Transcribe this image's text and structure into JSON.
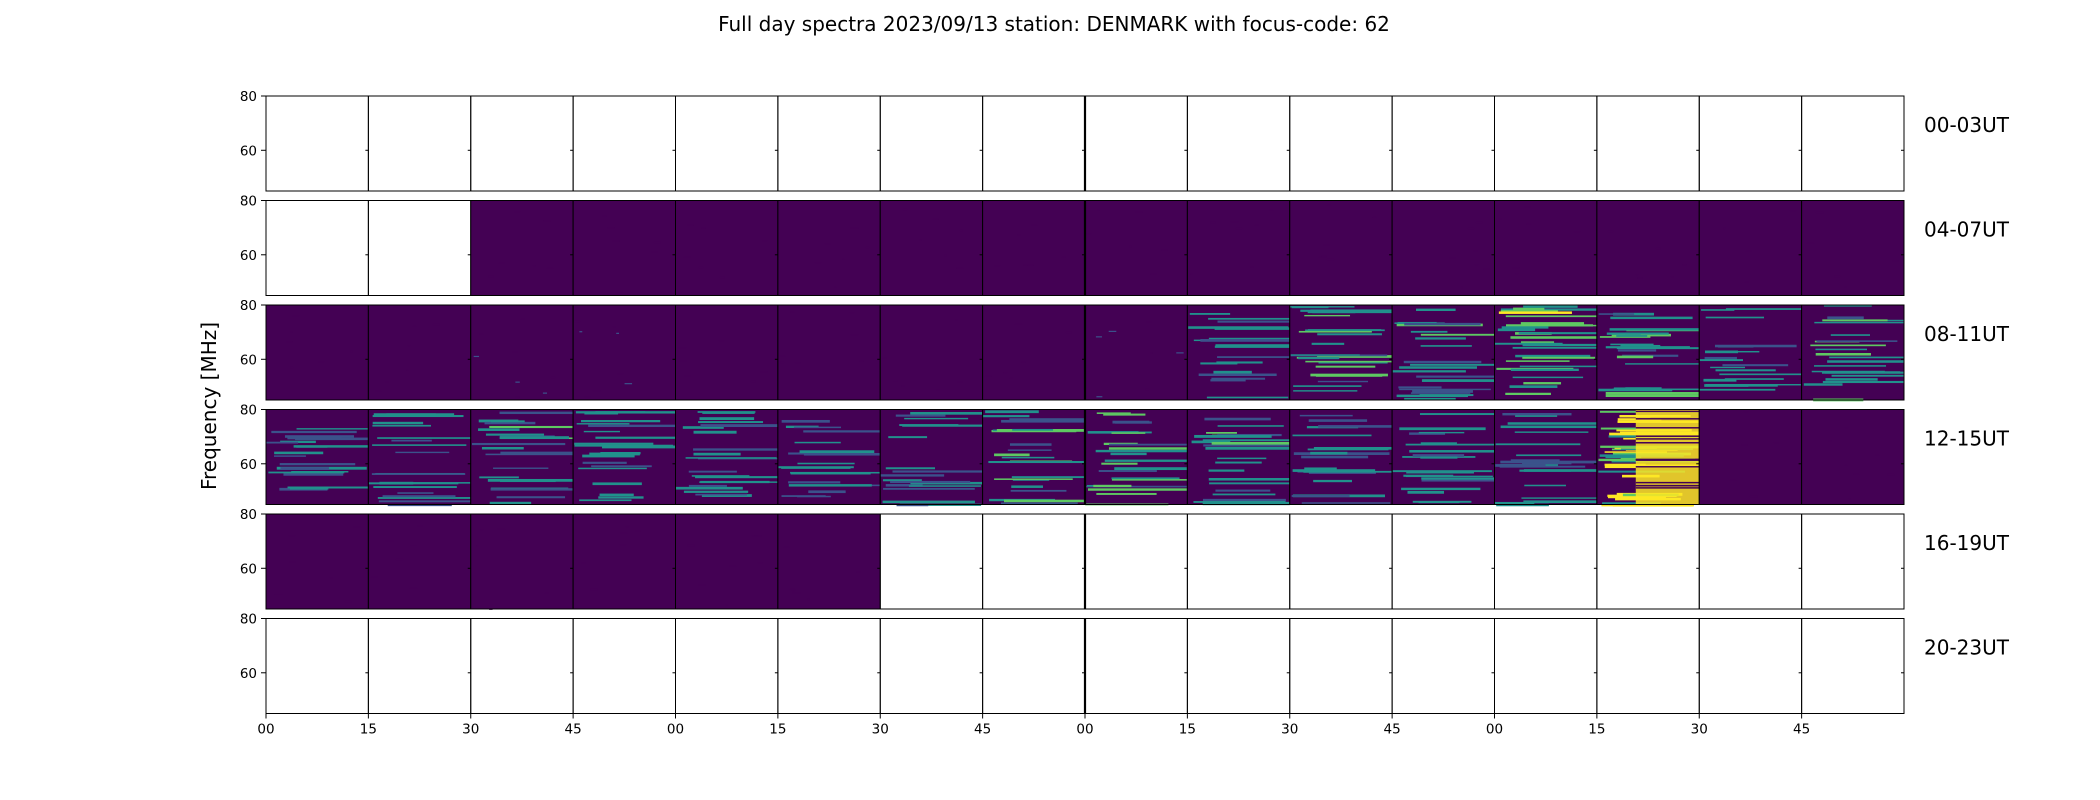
{
  "chart_data": {
    "type": "heatmap",
    "title": "Full day spectra 2023/09/13 station: DENMARK with focus-code: 62",
    "ylabel": "Frequency [MHz]",
    "xlabel": "",
    "ylim": [
      45,
      80
    ],
    "y_ticks": [
      "80",
      "60"
    ],
    "x_ticks": [
      "00",
      "15",
      "30",
      "45",
      "00",
      "15",
      "30",
      "45",
      "00",
      "15",
      "30",
      "45",
      "00",
      "15",
      "30",
      "45"
    ],
    "panels_per_row": 16,
    "panel_minutes": 15,
    "colormap": [
      "#440154",
      "#3b528b",
      "#21918c",
      "#5ec962",
      "#fde725"
    ],
    "rows": [
      {
        "label": "00-03UT",
        "activity": [
          null,
          null,
          null,
          null,
          null,
          null,
          null,
          null,
          null,
          null,
          null,
          null,
          null,
          null,
          null,
          null
        ]
      },
      {
        "label": "04-07UT",
        "activity": [
          null,
          null,
          0.04,
          0.04,
          0.04,
          0.05,
          0.06,
          0.04,
          0.04,
          0.07,
          0.07,
          0.07,
          0.04,
          0.05,
          0.05,
          0.05
        ]
      },
      {
        "label": "08-11UT",
        "activity": [
          0.07,
          0.07,
          0.1,
          0.1,
          0.07,
          0.08,
          0.06,
          0.06,
          0.1,
          0.35,
          0.55,
          0.45,
          0.6,
          0.5,
          0.4,
          0.45
        ]
      },
      {
        "label": "12-15UT",
        "activity": [
          0.4,
          0.4,
          0.45,
          0.42,
          0.42,
          0.38,
          0.38,
          0.45,
          0.5,
          0.45,
          0.4,
          0.4,
          0.42,
          0.85,
          0.05,
          0.08
        ]
      },
      {
        "label": "16-19UT",
        "activity": [
          0.06,
          0.08,
          0.06,
          0.06,
          0.07,
          0.06,
          null,
          null,
          null,
          null,
          null,
          null,
          null,
          null,
          null,
          null
        ]
      },
      {
        "label": "20-23UT",
        "activity": [
          null,
          null,
          null,
          null,
          null,
          null,
          null,
          null,
          null,
          null,
          null,
          null,
          null,
          null,
          null,
          null
        ]
      }
    ]
  }
}
